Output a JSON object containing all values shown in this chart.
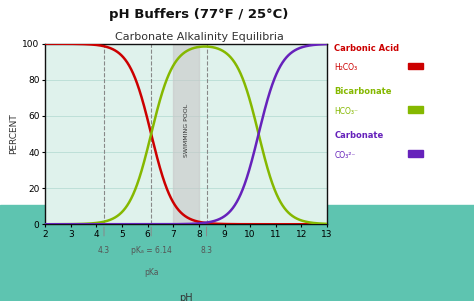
{
  "title_line1": "pH Buffers (77°F / 25°C)",
  "title_line2": "Carbonate Alkalinity Equilibria",
  "xlabel": "pH",
  "ylabel": "PERCENT",
  "xlim": [
    2,
    13
  ],
  "ylim": [
    0,
    100
  ],
  "xticks": [
    2,
    3,
    4,
    5,
    6,
    7,
    8,
    9,
    10,
    11,
    12,
    13
  ],
  "yticks": [
    0,
    20,
    40,
    60,
    80,
    100
  ],
  "pka1": 6.14,
  "pka2": 10.33,
  "swimming_pool_x1": 7.0,
  "swimming_pool_x2": 8.0,
  "dashed_line_1": 4.3,
  "dashed_line_2": 6.14,
  "dashed_line_3": 8.3,
  "annotation_4_3": "4.3",
  "annotation_6_14": "pKₐ = 6.14",
  "annotation_pka": "pKa",
  "annotation_8_3": "8.3",
  "color_carbonic": "#cc0000",
  "color_bicarbonate": "#85b800",
  "color_carbonate": "#6622bb",
  "color_swimming_pool": "#c8c8c8",
  "color_bg_outer_top": "#ffffff",
  "color_bg_outer_bottom": "#5ec4b0",
  "color_bg_plot": "#dff2ec",
  "color_grid": "#b8ddd5",
  "color_plot_border": "#111111",
  "legend_carbonic_label1": "Carbonic Acid",
  "legend_carbonic_label2": "H₂CO₃",
  "legend_bicarbonate_label1": "Bicarbonate",
  "legend_bicarbonate_label2": "HCO₃⁻",
  "legend_carbonate_label1": "Carbonate",
  "legend_carbonate_label2": "CO₃²⁻",
  "swimming_pool_text": "SWIMMING POOL"
}
